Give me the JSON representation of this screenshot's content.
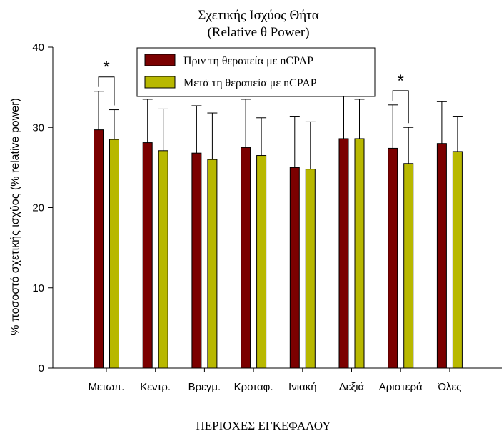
{
  "chart_data": {
    "type": "bar",
    "title": "Σχετικής Ισχύος Θήτα",
    "subtitle": "(Relative θ Power)",
    "xlabel": "ΠΕΡΙΟΧΕΣ ΕΓΚΕΦΑΛΟΥ",
    "ylabel": "% ποσοστό σχετικής ισχύος (% relative power)",
    "ylim": [
      0,
      40
    ],
    "yticks": [
      "0",
      "10",
      "20",
      "30",
      "40"
    ],
    "categories": [
      "Μετωπ.",
      "Κεντρ.",
      "Βρεγμ.",
      "Κροταφ.",
      "Ινιακή",
      "Δεξιά",
      "Αριστερά",
      "Όλες"
    ],
    "series": [
      {
        "name": "Πριν τη θεραπεία με nCPAP",
        "color": "#7b0000",
        "values": [
          29.7,
          28.1,
          26.8,
          27.5,
          25.0,
          28.6,
          27.4,
          28.0
        ],
        "error_upper": [
          34.5,
          33.5,
          32.7,
          33.5,
          31.4,
          34.0,
          32.8,
          33.2
        ]
      },
      {
        "name": "Μετά τη θεραπεία με nCPAP",
        "color": "#b8b800",
        "values": [
          28.5,
          27.1,
          26.0,
          26.5,
          24.8,
          28.6,
          25.5,
          27.0
        ],
        "error_upper": [
          32.2,
          32.3,
          31.8,
          31.2,
          30.7,
          33.5,
          30.0,
          31.4
        ]
      }
    ],
    "annotations": [
      {
        "label": "*",
        "category_index": 0
      },
      {
        "label": "*",
        "category_index": 6
      }
    ],
    "legend_position": "top-center",
    "grid": false
  }
}
